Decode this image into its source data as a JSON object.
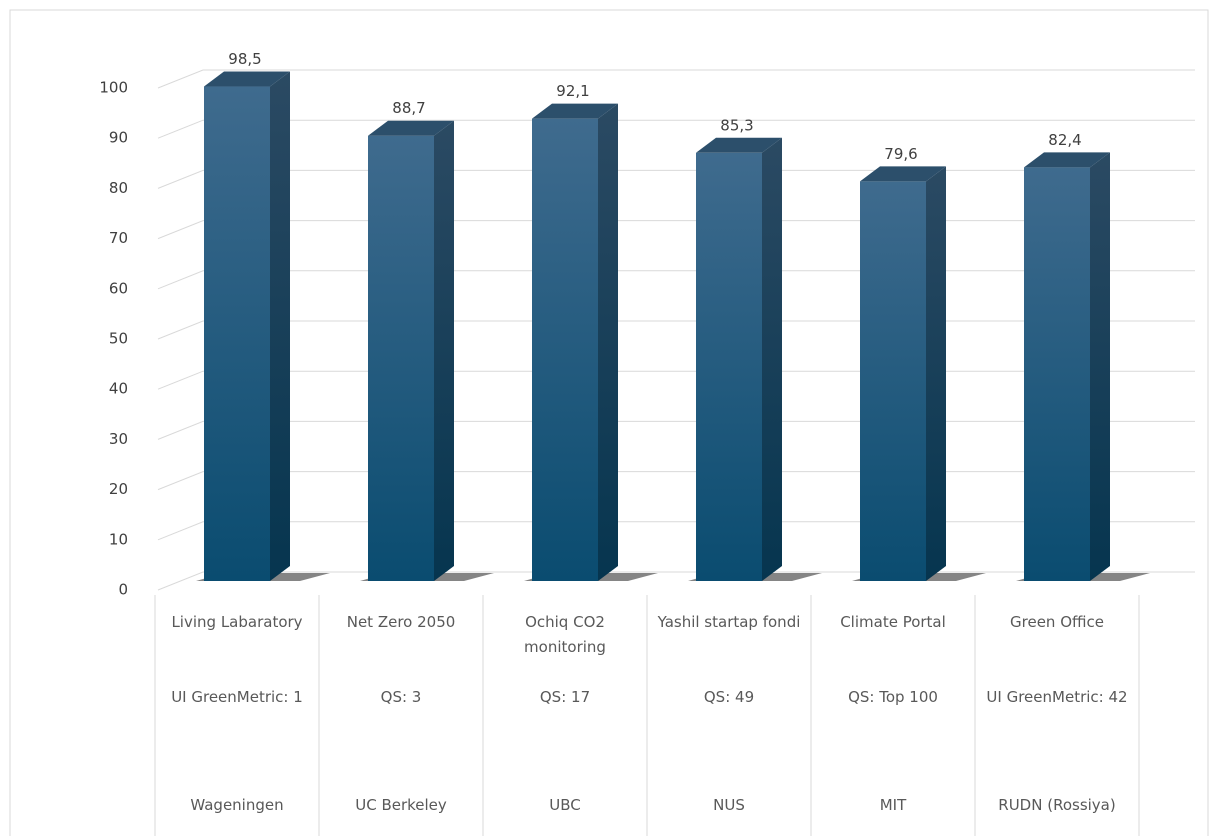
{
  "chart_data": {
    "type": "bar3d",
    "categories": [
      [
        "Living Labaratory",
        "UI GreenMetric: 1",
        "Wageningen"
      ],
      [
        "Net Zero 2050",
        "QS: 3",
        "UC Berkeley"
      ],
      [
        "Ochiq CO2 monitoring",
        "QS: 17",
        "UBC"
      ],
      [
        "Yashil startap fondi",
        "QS: 49",
        "NUS"
      ],
      [
        "Climate Portal",
        "QS: Top 100",
        "MIT"
      ],
      [
        "Green Office",
        "UI GreenMetric: 42",
        "RUDN (Rossiya)"
      ]
    ],
    "values": [
      98.5,
      88.7,
      92.1,
      85.3,
      79.6,
      82.4
    ],
    "value_labels": [
      "98,5",
      "88,7",
      "92,1",
      "85,3",
      "79,6",
      "82,4"
    ],
    "color": "#1b5f86",
    "ylim": [
      0,
      100
    ],
    "yticks": [
      0,
      10,
      20,
      30,
      40,
      50,
      60,
      70,
      80,
      90,
      100
    ],
    "grid": true
  }
}
